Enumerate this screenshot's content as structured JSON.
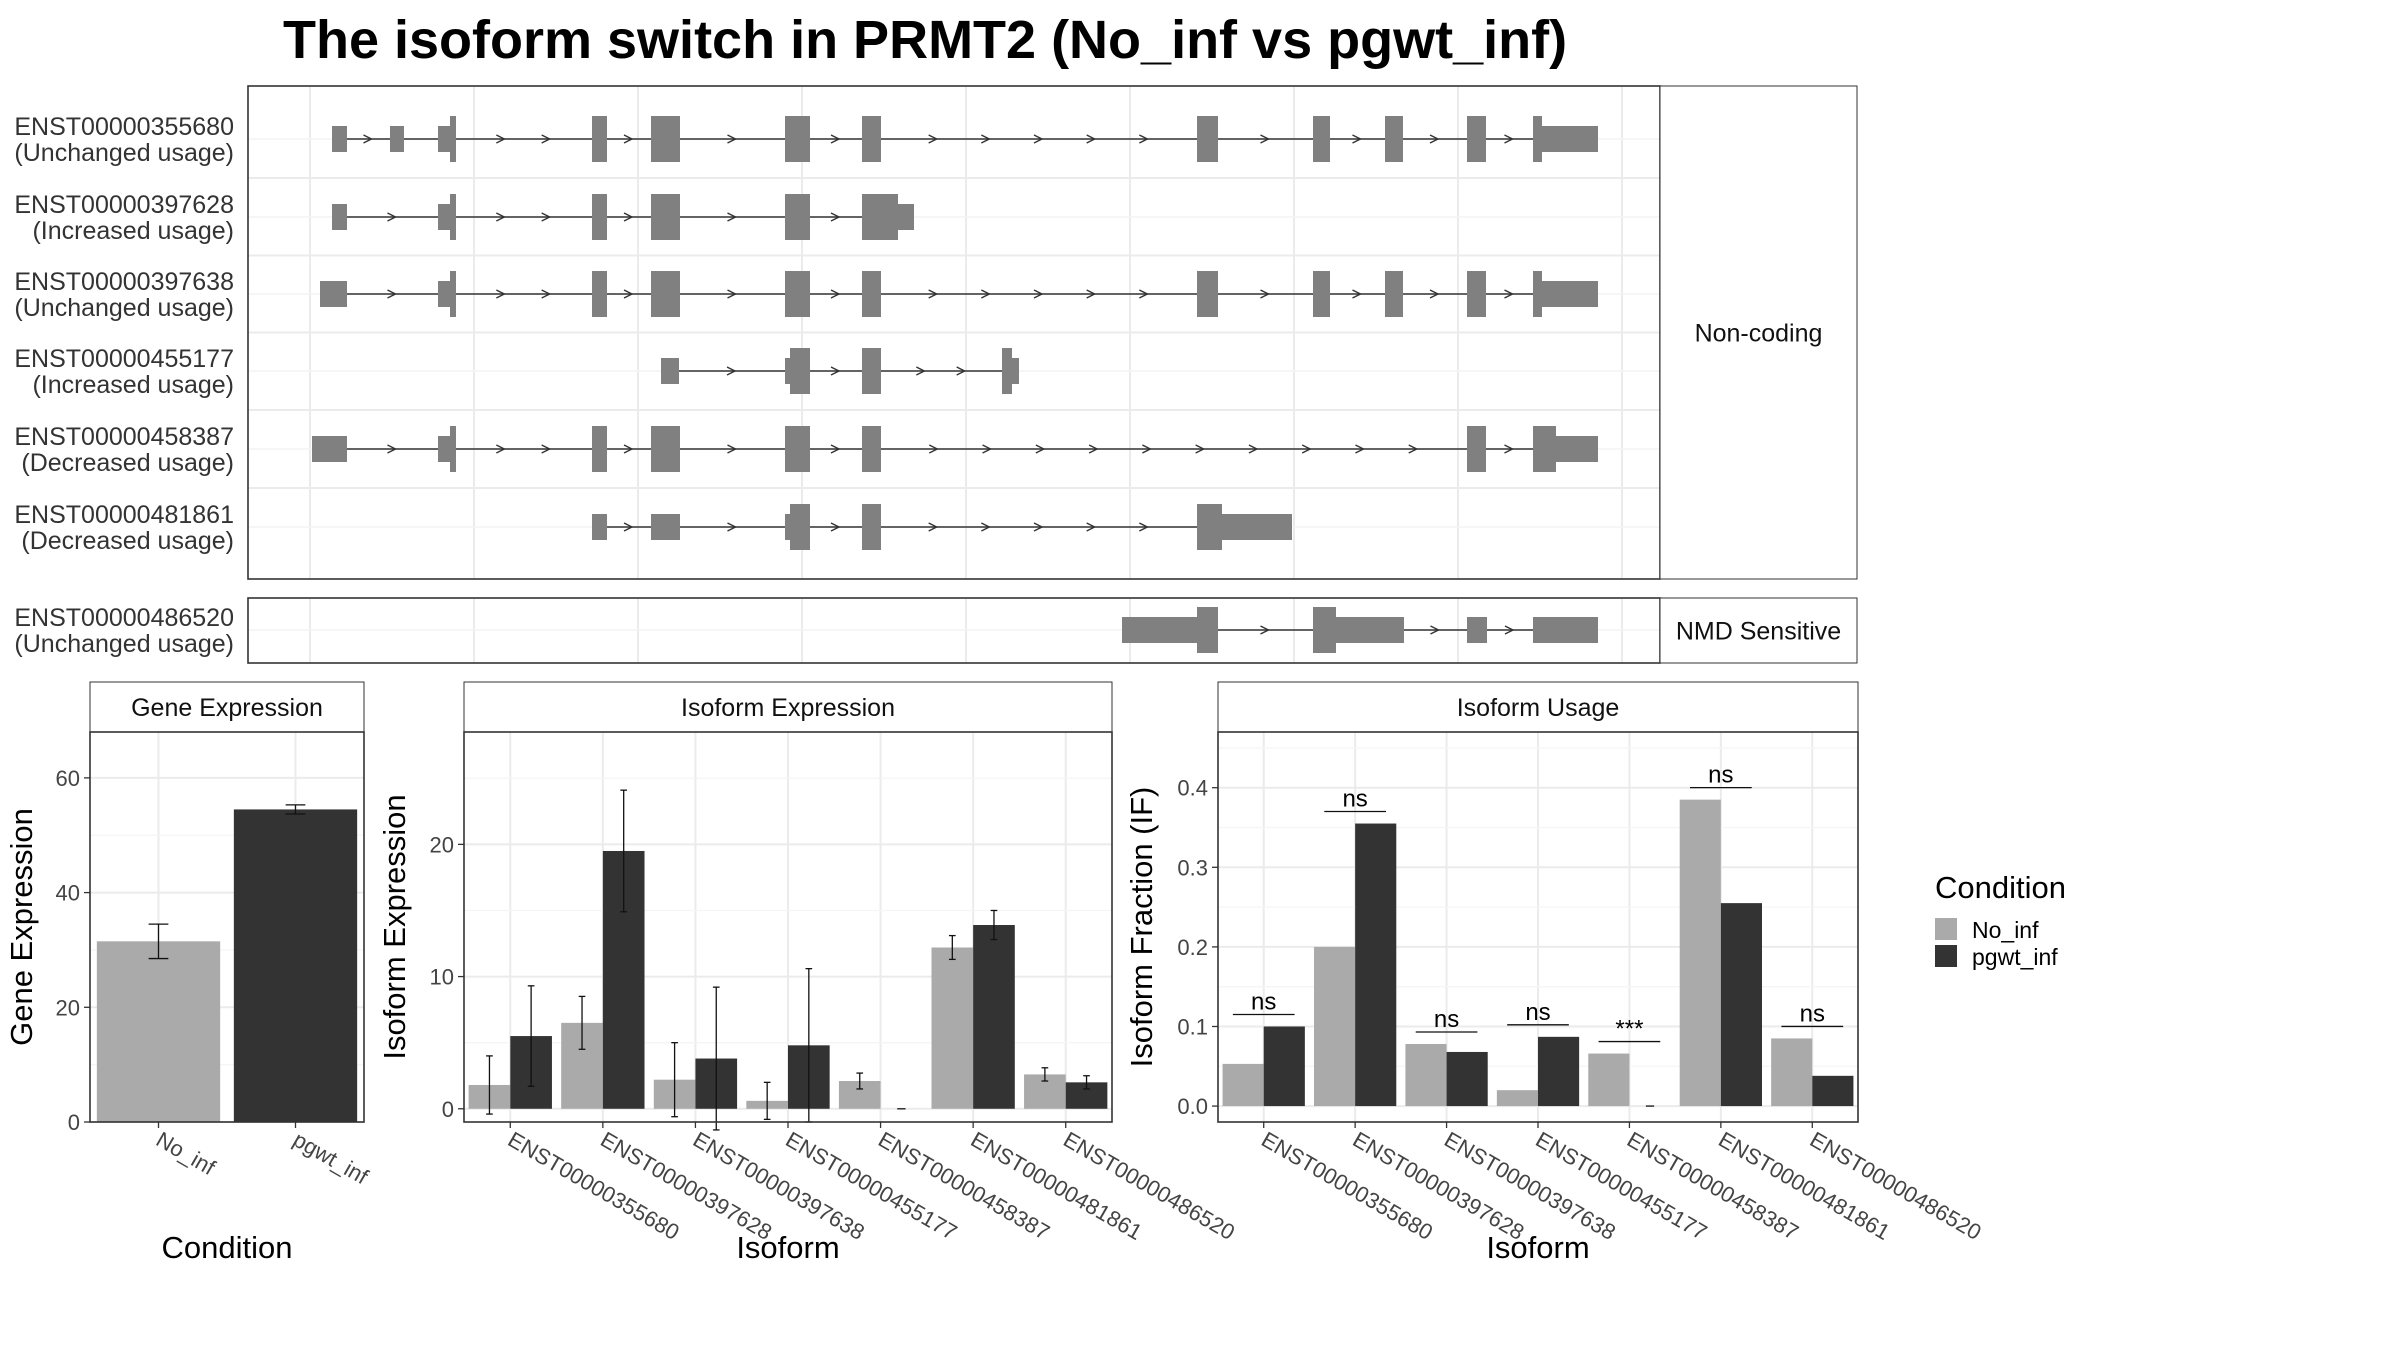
{
  "title": "The isoform switch in PRMT2 (No_inf vs pgwt_inf)",
  "colors": {
    "No_inf": "#AAAAAA",
    "pgwt_inf": "#333333",
    "exon": "#808080"
  },
  "chart_data": [
    {
      "type": "gene-structure",
      "panels": [
        {
          "label": "Non-coding",
          "isoforms": [
            {
              "id": "ENST00000355680",
              "usage": "(Unchanged usage)"
            },
            {
              "id": "ENST00000397628",
              "usage": "(Increased usage)"
            },
            {
              "id": "ENST00000397638",
              "usage": "(Unchanged usage)"
            },
            {
              "id": "ENST00000455177",
              "usage": "(Increased usage)"
            },
            {
              "id": "ENST00000458387",
              "usage": "(Decreased usage)"
            },
            {
              "id": "ENST00000481861",
              "usage": "(Decreased usage)"
            }
          ]
        },
        {
          "label": "NMD Sensitive",
          "isoforms": [
            {
              "id": "ENST00000486520",
              "usage": "(Unchanged usage)"
            }
          ]
        }
      ]
    },
    {
      "type": "bar",
      "strip": "Gene Expression",
      "xlabel": "Condition",
      "ylabel": "Gene Expression",
      "ylim": [
        0,
        68
      ],
      "yticks": [
        0,
        20,
        40,
        60
      ],
      "categories": [
        "No_inf",
        "pgwt_inf"
      ],
      "values": [
        31.5,
        54.5
      ],
      "errors": [
        3,
        0.8
      ]
    },
    {
      "type": "bar",
      "strip": "Isoform Expression",
      "xlabel": "Isoform",
      "ylabel": "Isoform Expression",
      "ylim": [
        -1,
        28.5
      ],
      "yticks": [
        0,
        10,
        20
      ],
      "categories": [
        "ENST00000355680",
        "ENST00000397628",
        "ENST00000397638",
        "ENST00000455177",
        "ENST00000458387",
        "ENST00000481861",
        "ENST00000486520"
      ],
      "series": [
        {
          "name": "No_inf",
          "values": [
            1.8,
            6.5,
            2.2,
            0.6,
            2.1,
            12.2,
            2.6
          ],
          "errors": [
            2.2,
            2.0,
            2.8,
            1.4,
            0.6,
            0.9,
            0.5
          ]
        },
        {
          "name": "pgwt_inf",
          "values": [
            5.5,
            19.5,
            3.8,
            4.8,
            0.0,
            13.9,
            2.0
          ],
          "errors": [
            3.8,
            4.6,
            5.4,
            5.8,
            0.0,
            1.1,
            0.5
          ]
        }
      ]
    },
    {
      "type": "bar",
      "strip": "Isoform Usage",
      "xlabel": "Isoform",
      "ylabel": "Isoform Fraction (IF)",
      "ylim": [
        -0.02,
        0.47
      ],
      "yticks": [
        0.0,
        0.1,
        0.2,
        0.3,
        0.4
      ],
      "ytick_labels": [
        "0.0",
        "0.1",
        "0.2",
        "0.3",
        "0.4"
      ],
      "categories": [
        "ENST00000355680",
        "ENST00000397628",
        "ENST00000397638",
        "ENST00000455177",
        "ENST00000458387",
        "ENST00000481861",
        "ENST00000486520"
      ],
      "series": [
        {
          "name": "No_inf",
          "values": [
            0.053,
            0.2,
            0.078,
            0.02,
            0.066,
            0.385,
            0.085
          ]
        },
        {
          "name": "pgwt_inf",
          "values": [
            0.1,
            0.355,
            0.068,
            0.087,
            0.0,
            0.255,
            0.038
          ]
        }
      ],
      "significance": [
        "ns",
        "ns",
        "ns",
        "ns",
        "***",
        "ns",
        "ns"
      ]
    }
  ],
  "legend": {
    "title": "Condition",
    "items": [
      "No_inf",
      "pgwt_inf"
    ]
  }
}
